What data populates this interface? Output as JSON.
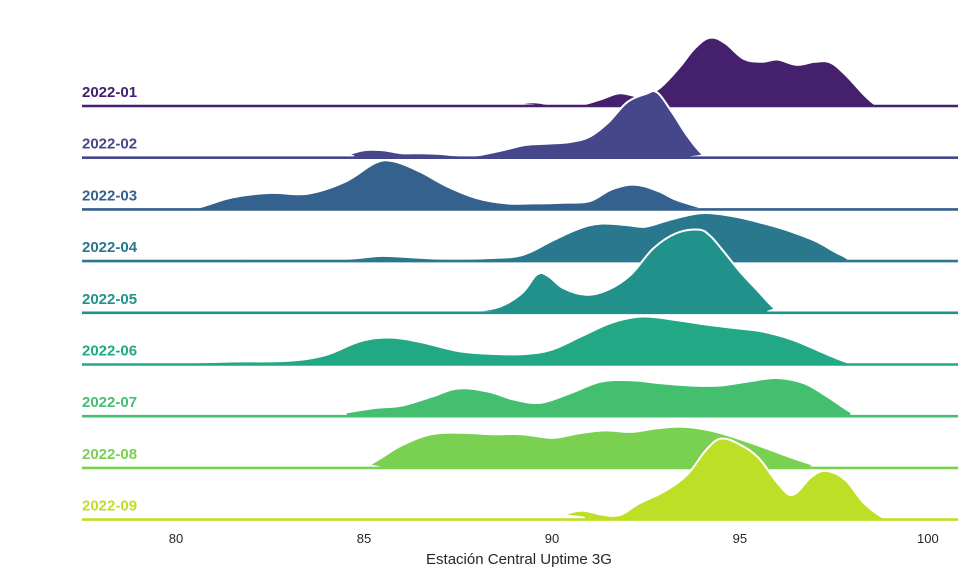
{
  "chart_data": {
    "type": "ridgeline",
    "xlabel": "Estación Central Uptime 3G",
    "xlim": [
      77.5,
      100.8
    ],
    "xticks": [
      "80",
      "85",
      "90",
      "95",
      "100"
    ],
    "colors": [
      "#45206d",
      "#45478a",
      "#34618d",
      "#2a788e",
      "#21918c",
      "#22a884",
      "#44bf70",
      "#7ad151",
      "#bddf26"
    ],
    "series": [
      {
        "name": "2022-01",
        "points": [
          [
            77.5,
            0
          ],
          [
            88.5,
            0
          ],
          [
            89.0,
            0.02
          ],
          [
            89.5,
            0.05
          ],
          [
            90.0,
            0.02
          ],
          [
            90.7,
            0.01
          ],
          [
            91.3,
            0.09
          ],
          [
            91.8,
            0.17
          ],
          [
            92.3,
            0.13
          ],
          [
            92.7,
            0.19
          ],
          [
            93.0,
            0.3
          ],
          [
            93.4,
            0.52
          ],
          [
            93.8,
            0.77
          ],
          [
            94.2,
            0.91
          ],
          [
            94.6,
            0.84
          ],
          [
            95.1,
            0.63
          ],
          [
            95.6,
            0.59
          ],
          [
            96.0,
            0.62
          ],
          [
            96.5,
            0.55
          ],
          [
            97.0,
            0.59
          ],
          [
            97.4,
            0.58
          ],
          [
            97.8,
            0.42
          ],
          [
            98.3,
            0.15
          ],
          [
            98.6,
            0.02
          ],
          [
            98.8,
            0
          ],
          [
            100.8,
            0
          ]
        ]
      },
      {
        "name": "2022-02",
        "points": [
          [
            77.5,
            0
          ],
          [
            84.0,
            0
          ],
          [
            84.6,
            0.05
          ],
          [
            85.0,
            0.1
          ],
          [
            85.5,
            0.1
          ],
          [
            86.0,
            0.06
          ],
          [
            86.5,
            0.06
          ],
          [
            87.0,
            0.05
          ],
          [
            87.5,
            0.03
          ],
          [
            88.0,
            0.03
          ],
          [
            88.7,
            0.1
          ],
          [
            89.3,
            0.17
          ],
          [
            90.0,
            0.19
          ],
          [
            90.5,
            0.21
          ],
          [
            91.0,
            0.28
          ],
          [
            91.5,
            0.47
          ],
          [
            92.0,
            0.74
          ],
          [
            92.5,
            0.85
          ],
          [
            92.8,
            0.87
          ],
          [
            93.2,
            0.6
          ],
          [
            93.6,
            0.29
          ],
          [
            94.0,
            0.05
          ],
          [
            94.3,
            0
          ],
          [
            100.8,
            0
          ]
        ]
      },
      {
        "name": "2022-03",
        "points": [
          [
            77.5,
            0
          ],
          [
            80.2,
            0
          ],
          [
            80.7,
            0.04
          ],
          [
            81.5,
            0.16
          ],
          [
            82.5,
            0.22
          ],
          [
            83.5,
            0.21
          ],
          [
            84.5,
            0.37
          ],
          [
            85.3,
            0.62
          ],
          [
            85.8,
            0.64
          ],
          [
            86.5,
            0.5
          ],
          [
            87.2,
            0.31
          ],
          [
            88.0,
            0.15
          ],
          [
            88.8,
            0.08
          ],
          [
            89.5,
            0.08
          ],
          [
            90.3,
            0.09
          ],
          [
            91.0,
            0.11
          ],
          [
            91.6,
            0.27
          ],
          [
            92.2,
            0.33
          ],
          [
            92.8,
            0.25
          ],
          [
            93.3,
            0.13
          ],
          [
            94.0,
            0.02
          ],
          [
            94.2,
            0
          ],
          [
            100.8,
            0
          ]
        ]
      },
      {
        "name": "2022-04",
        "points": [
          [
            77.5,
            0
          ],
          [
            80.5,
            0
          ],
          [
            81.2,
            0.02
          ],
          [
            81.8,
            0.03
          ],
          [
            82.4,
            0.01
          ],
          [
            84.0,
            0.01
          ],
          [
            84.8,
            0.04
          ],
          [
            85.5,
            0.07
          ],
          [
            86.3,
            0.05
          ],
          [
            87.2,
            0.03
          ],
          [
            88.3,
            0.04
          ],
          [
            89.2,
            0.08
          ],
          [
            90.0,
            0.27
          ],
          [
            90.7,
            0.43
          ],
          [
            91.3,
            0.5
          ],
          [
            92.0,
            0.48
          ],
          [
            92.5,
            0.46
          ],
          [
            93.2,
            0.56
          ],
          [
            94.0,
            0.64
          ],
          [
            94.8,
            0.6
          ],
          [
            95.5,
            0.52
          ],
          [
            96.2,
            0.42
          ],
          [
            97.0,
            0.27
          ],
          [
            97.7,
            0.08
          ],
          [
            98.3,
            0
          ],
          [
            100.8,
            0
          ]
        ]
      },
      {
        "name": "2022-05",
        "points": [
          [
            77.5,
            0
          ],
          [
            87.5,
            0
          ],
          [
            87.9,
            0.02
          ],
          [
            88.6,
            0.08
          ],
          [
            89.2,
            0.26
          ],
          [
            89.6,
            0.51
          ],
          [
            89.9,
            0.49
          ],
          [
            90.3,
            0.33
          ],
          [
            90.9,
            0.24
          ],
          [
            91.5,
            0.31
          ],
          [
            92.1,
            0.51
          ],
          [
            92.7,
            0.86
          ],
          [
            93.3,
            1.06
          ],
          [
            93.9,
            1.11
          ],
          [
            94.2,
            1.03
          ],
          [
            94.5,
            0.86
          ],
          [
            95.0,
            0.55
          ],
          [
            95.5,
            0.28
          ],
          [
            95.9,
            0.07
          ],
          [
            96.2,
            0
          ],
          [
            100.8,
            0
          ]
        ]
      },
      {
        "name": "2022-06",
        "points": [
          [
            77.5,
            0
          ],
          [
            79.0,
            0
          ],
          [
            80.0,
            0.02
          ],
          [
            81.5,
            0.04
          ],
          [
            83.0,
            0.05
          ],
          [
            84.0,
            0.13
          ],
          [
            84.9,
            0.31
          ],
          [
            85.7,
            0.36
          ],
          [
            86.5,
            0.3
          ],
          [
            87.5,
            0.18
          ],
          [
            88.5,
            0.14
          ],
          [
            89.3,
            0.14
          ],
          [
            90.0,
            0.2
          ],
          [
            90.8,
            0.38
          ],
          [
            91.6,
            0.56
          ],
          [
            92.4,
            0.64
          ],
          [
            93.2,
            0.6
          ],
          [
            94.0,
            0.54
          ],
          [
            94.8,
            0.49
          ],
          [
            95.6,
            0.44
          ],
          [
            96.4,
            0.33
          ],
          [
            97.2,
            0.16
          ],
          [
            97.8,
            0.04
          ],
          [
            98.2,
            0
          ],
          [
            100.8,
            0
          ]
        ]
      },
      {
        "name": "2022-07",
        "points": [
          [
            77.5,
            0
          ],
          [
            83.8,
            0
          ],
          [
            84.5,
            0.05
          ],
          [
            85.3,
            0.11
          ],
          [
            86.0,
            0.14
          ],
          [
            86.8,
            0.26
          ],
          [
            87.5,
            0.37
          ],
          [
            88.3,
            0.33
          ],
          [
            89.0,
            0.22
          ],
          [
            89.7,
            0.18
          ],
          [
            90.5,
            0.31
          ],
          [
            91.3,
            0.46
          ],
          [
            92.1,
            0.48
          ],
          [
            92.9,
            0.44
          ],
          [
            93.7,
            0.41
          ],
          [
            94.5,
            0.41
          ],
          [
            95.3,
            0.47
          ],
          [
            96.0,
            0.51
          ],
          [
            96.7,
            0.44
          ],
          [
            97.3,
            0.27
          ],
          [
            97.9,
            0.07
          ],
          [
            98.3,
            0
          ],
          [
            100.8,
            0
          ]
        ]
      },
      {
        "name": "2022-08",
        "points": [
          [
            77.5,
            0
          ],
          [
            84.7,
            0
          ],
          [
            85.2,
            0.06
          ],
          [
            86.0,
            0.3
          ],
          [
            86.8,
            0.45
          ],
          [
            87.6,
            0.47
          ],
          [
            88.4,
            0.45
          ],
          [
            89.2,
            0.45
          ],
          [
            90.0,
            0.4
          ],
          [
            90.7,
            0.46
          ],
          [
            91.4,
            0.5
          ],
          [
            92.1,
            0.48
          ],
          [
            92.8,
            0.53
          ],
          [
            93.5,
            0.55
          ],
          [
            94.2,
            0.5
          ],
          [
            94.9,
            0.4
          ],
          [
            95.6,
            0.28
          ],
          [
            96.3,
            0.15
          ],
          [
            96.9,
            0.05
          ],
          [
            97.3,
            0
          ],
          [
            100.8,
            0
          ]
        ]
      },
      {
        "name": "2022-09",
        "points": [
          [
            77.5,
            0
          ],
          [
            89.7,
            0
          ],
          [
            90.3,
            0.07
          ],
          [
            90.8,
            0.12
          ],
          [
            91.3,
            0.07
          ],
          [
            91.8,
            0.06
          ],
          [
            92.3,
            0.21
          ],
          [
            93.0,
            0.38
          ],
          [
            93.6,
            0.6
          ],
          [
            94.1,
            0.93
          ],
          [
            94.5,
            1.08
          ],
          [
            95.0,
            1.0
          ],
          [
            95.5,
            0.82
          ],
          [
            96.0,
            0.49
          ],
          [
            96.4,
            0.33
          ],
          [
            96.9,
            0.57
          ],
          [
            97.3,
            0.65
          ],
          [
            97.8,
            0.53
          ],
          [
            98.3,
            0.22
          ],
          [
            98.8,
            0.03
          ],
          [
            99.1,
            0
          ],
          [
            100.8,
            0
          ]
        ]
      }
    ]
  }
}
